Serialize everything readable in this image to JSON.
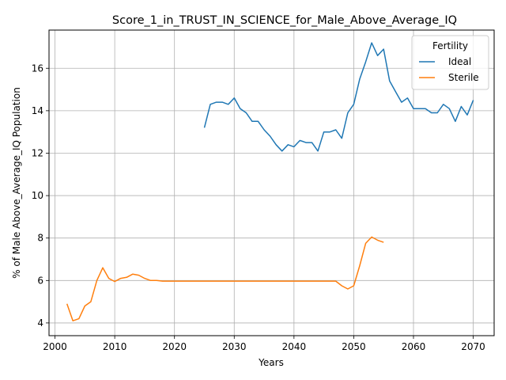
{
  "chart_data": {
    "type": "line",
    "title": "Score_1_in_TRUST_IN_SCIENCE_for_Male_Above_Average_IQ",
    "xlabel": "Years",
    "ylabel": "% of Male Above_Average_IQ Population",
    "xlim": [
      1999,
      2073.5
    ],
    "ylim": [
      3.4,
      17.8
    ],
    "xticks": [
      2000,
      2010,
      2020,
      2030,
      2040,
      2050,
      2060,
      2070
    ],
    "yticks": [
      4,
      6,
      8,
      10,
      12,
      14,
      16
    ],
    "grid": true,
    "legend": {
      "title": "Fertility",
      "placement": "top-right"
    },
    "series": [
      {
        "name": "Ideal",
        "color": "#1f77b4",
        "x": [
          2025,
          2026,
          2027,
          2028,
          2029,
          2030,
          2031,
          2032,
          2033,
          2034,
          2035,
          2036,
          2037,
          2038,
          2039,
          2040,
          2041,
          2042,
          2043,
          2044,
          2045,
          2046,
          2047,
          2048,
          2049,
          2050,
          2051,
          2052,
          2053,
          2054,
          2055,
          2056,
          2057,
          2058,
          2059,
          2060,
          2061,
          2062,
          2063,
          2064,
          2065,
          2066,
          2067,
          2068,
          2069,
          2070
        ],
        "y": [
          13.2,
          14.3,
          14.4,
          14.4,
          14.3,
          14.6,
          14.1,
          13.9,
          13.5,
          13.5,
          13.1,
          12.8,
          12.4,
          12.1,
          12.4,
          12.3,
          12.6,
          12.5,
          12.5,
          12.1,
          13.0,
          13.0,
          13.1,
          12.7,
          13.9,
          14.3,
          15.5,
          16.3,
          17.2,
          16.6,
          16.9,
          15.4,
          14.9,
          14.4,
          14.6,
          14.1,
          14.1,
          14.1,
          13.9,
          13.9,
          14.3,
          14.1,
          13.5,
          14.2,
          13.8,
          14.5
        ]
      },
      {
        "name": "Sterile",
        "color": "#ff7f0e",
        "x": [
          2002,
          2003,
          2004,
          2005,
          2006,
          2007,
          2008,
          2009,
          2010,
          2011,
          2012,
          2013,
          2014,
          2015,
          2016,
          2017,
          2018,
          2019,
          2020,
          2021,
          2022,
          2023,
          2024,
          2025,
          2026,
          2027,
          2028,
          2029,
          2030,
          2031,
          2032,
          2033,
          2034,
          2035,
          2036,
          2037,
          2038,
          2039,
          2040,
          2041,
          2042,
          2043,
          2044,
          2045,
          2046,
          2047,
          2048,
          2049,
          2050,
          2051,
          2052,
          2053,
          2054,
          2055
        ],
        "y": [
          4.9,
          4.1,
          4.2,
          4.8,
          5.0,
          6.0,
          6.6,
          6.1,
          5.95,
          6.1,
          6.15,
          6.3,
          6.25,
          6.1,
          6.0,
          6.0,
          5.97,
          5.97,
          5.97,
          5.97,
          5.97,
          5.97,
          5.97,
          5.97,
          5.97,
          5.97,
          5.97,
          5.97,
          5.97,
          5.97,
          5.97,
          5.97,
          5.97,
          5.97,
          5.97,
          5.97,
          5.97,
          5.97,
          5.97,
          5.97,
          5.97,
          5.97,
          5.97,
          5.97,
          5.97,
          5.97,
          5.75,
          5.6,
          5.75,
          6.7,
          7.75,
          8.05,
          7.9,
          7.8
        ]
      }
    ]
  }
}
